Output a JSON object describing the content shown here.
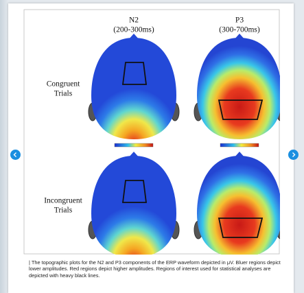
{
  "figure": {
    "columns": [
      {
        "name": "N2",
        "window": "(200-300ms)"
      },
      {
        "name": "P3",
        "window": "(300-700ms)"
      }
    ],
    "rows": [
      {
        "label_lines": [
          "Congruent",
          "Trials"
        ]
      },
      {
        "label_lines": [
          "Incongruent",
          "Trials"
        ]
      }
    ]
  },
  "caption": "| The topographic plots for the N2 and P3 components of the ERP waveform depicted in μV. Bluer regions depict lower amplitudes. Red regions depict higher amplitudes. Regions of interest used for statistical analyses are depicted with heavy black lines."
}
